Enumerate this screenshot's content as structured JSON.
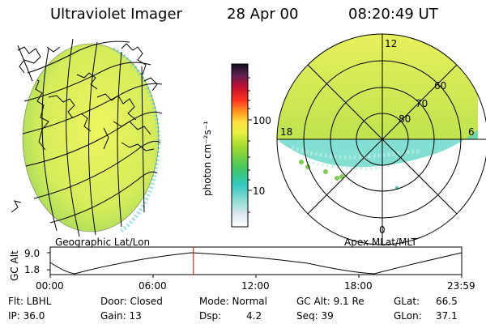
{
  "header": {
    "title": "Ultraviolet Imager",
    "date": "28 Apr 00",
    "time": "08:20:49 UT"
  },
  "colorbar": {
    "unit_label": "photon cm⁻²s⁻¹",
    "ticks": [
      "100",
      "10"
    ]
  },
  "geo_map": {
    "label": "Geographic Lat/Lon"
  },
  "polar_map": {
    "label": "Apex MLat/MLT",
    "mlt_labels": {
      "top": "12",
      "left": "18",
      "right": "6",
      "bottom": "0"
    },
    "lat_labels": [
      "60",
      "70",
      "80"
    ]
  },
  "altitude_plot": {
    "ylabel": "GC Alt",
    "yticks": [
      "9.0",
      "1.8"
    ],
    "xticks": [
      "00:00",
      "06:00",
      "12:00",
      "18:00",
      "23:59"
    ],
    "current_time_hours": 8.35
  },
  "info": {
    "flt": "Flt: LBHL",
    "ip": "IP: 36.0",
    "door": "Door: Closed",
    "gain": "Gain: 13",
    "mode": "Mode: Normal",
    "dsp": "Dsp:",
    "dsp_val": "4.2",
    "gc_alt": "GC Alt: 9.1 Re",
    "seq": "Seq: 39",
    "glat": "GLat:",
    "glat_val": "66.5",
    "glon": "GLon:",
    "glon_val": "37.1"
  },
  "colors": {
    "emission_green": "#b8e04a",
    "emission_yellow": "#e8f060",
    "emission_cyan": "#40d0c0",
    "time_marker": "#d03020"
  }
}
